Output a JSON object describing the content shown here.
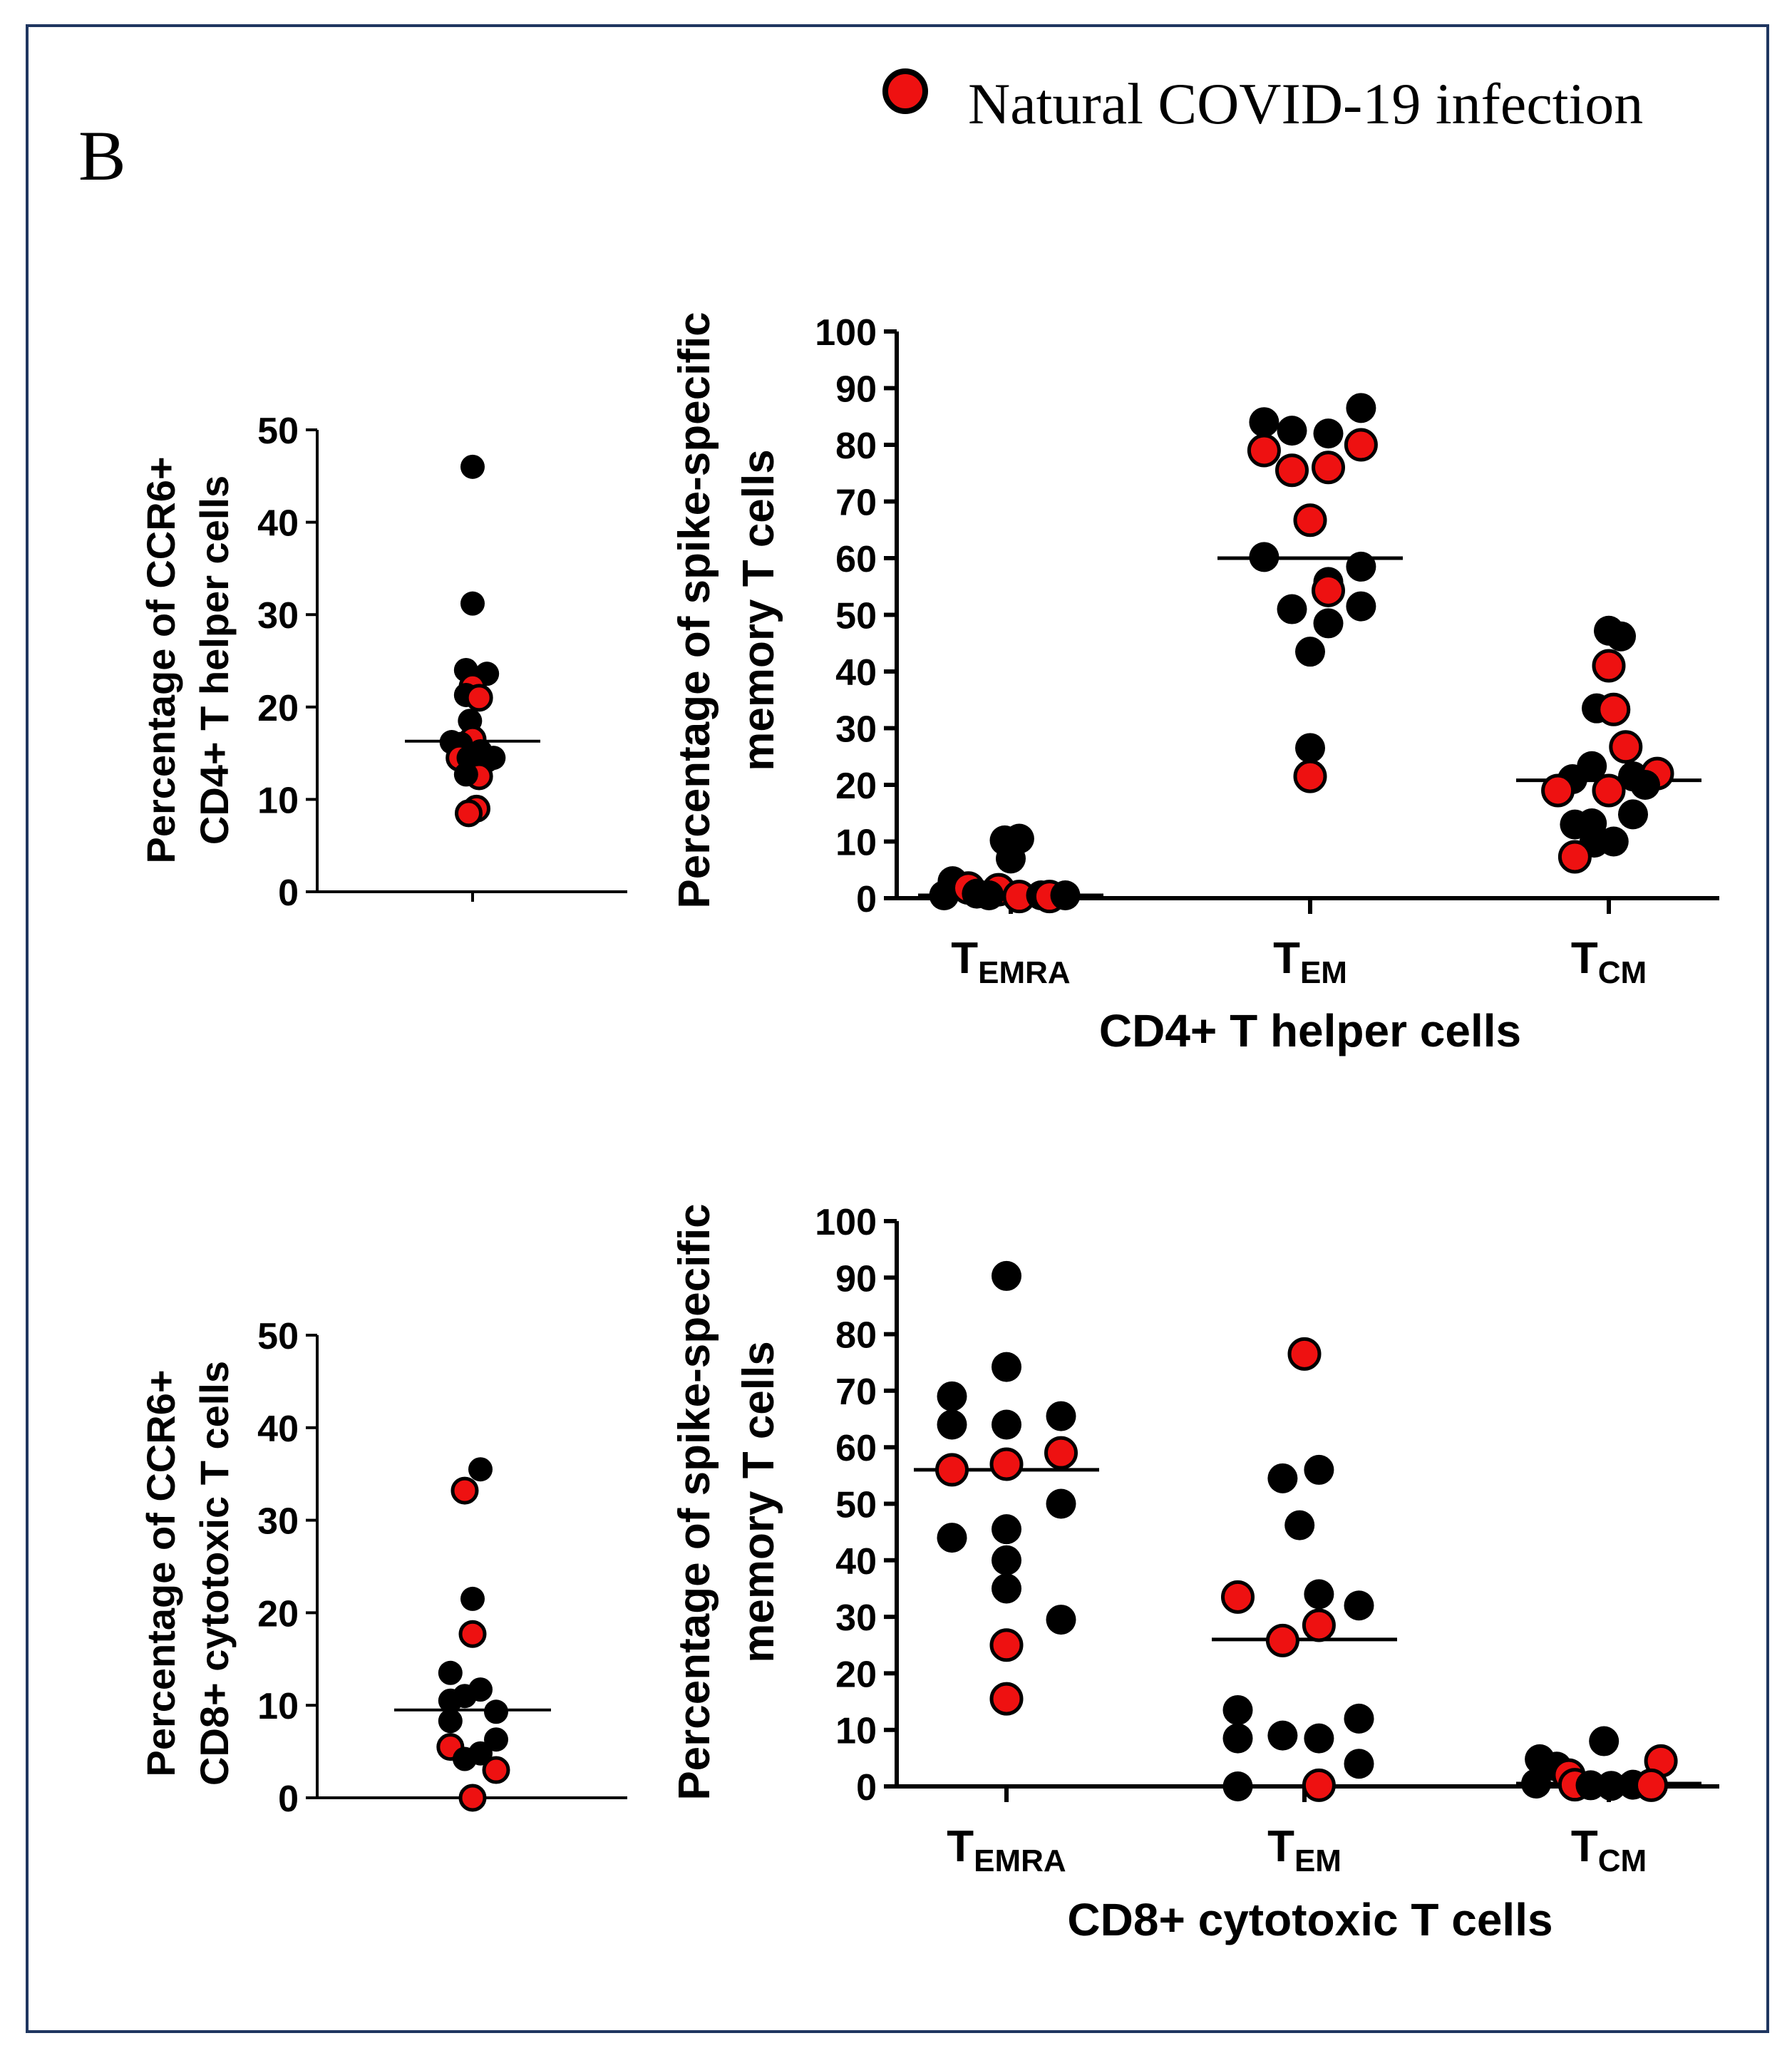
{
  "figure": {
    "panel_label": "B",
    "legend_label": "Natural COVID-19 infection",
    "colors": {
      "natural": "#ee1111",
      "other": "#000000",
      "frame": "#1f3660",
      "axis": "#000000"
    }
  },
  "chart_data": [
    {
      "id": "cd4-ccr6",
      "type": "scatter",
      "ylabel_lines": [
        "Percentage of CCR6+",
        "CD4+ T helper cells"
      ],
      "ylim": [
        0,
        50
      ],
      "yticks": [
        0,
        10,
        20,
        30,
        40,
        50
      ],
      "median": 16.3,
      "points": [
        {
          "y": 46.0,
          "dx": 0,
          "natural": false
        },
        {
          "y": 31.2,
          "dx": 0,
          "natural": false
        },
        {
          "y": 24.0,
          "dx": -0.5,
          "natural": false
        },
        {
          "y": 23.6,
          "dx": 1.1,
          "natural": false
        },
        {
          "y": 22.2,
          "dx": 0,
          "natural": true
        },
        {
          "y": 21.3,
          "dx": -0.5,
          "natural": false
        },
        {
          "y": 21.0,
          "dx": 0.5,
          "natural": true
        },
        {
          "y": 18.5,
          "dx": -0.2,
          "natural": false
        },
        {
          "y": 16.5,
          "dx": 0,
          "natural": true
        },
        {
          "y": 16.2,
          "dx": -1.6,
          "natural": false
        },
        {
          "y": 16.0,
          "dx": -0.9,
          "natural": false
        },
        {
          "y": 15.2,
          "dx": 0.6,
          "natural": false
        },
        {
          "y": 14.5,
          "dx": -1.0,
          "natural": true
        },
        {
          "y": 14.5,
          "dx": -0.3,
          "natural": false
        },
        {
          "y": 14.6,
          "dx": 0.3,
          "natural": false
        },
        {
          "y": 14.5,
          "dx": 1.6,
          "natural": false
        },
        {
          "y": 14.2,
          "dx": 1.1,
          "natural": false
        },
        {
          "y": 12.5,
          "dx": 0.5,
          "natural": true
        },
        {
          "y": 12.7,
          "dx": -0.5,
          "natural": false
        },
        {
          "y": 9.0,
          "dx": 0.3,
          "natural": true
        },
        {
          "y": 8.5,
          "dx": -0.3,
          "natural": true
        }
      ]
    },
    {
      "id": "cd4-memory",
      "type": "scatter",
      "ylabel_lines": [
        "Percentage of spike-specific",
        "memory T cells"
      ],
      "xlabel": "CD4+ T helper cells",
      "categories": [
        {
          "main": "T",
          "sub": "EMRA"
        },
        {
          "main": "T",
          "sub": "EM"
        },
        {
          "main": "T",
          "sub": "CM"
        }
      ],
      "ylim": [
        0,
        100
      ],
      "yticks": [
        0,
        10,
        20,
        30,
        40,
        50,
        60,
        70,
        80,
        90,
        100
      ],
      "medians": [
        0.5,
        60,
        20.8
      ],
      "groups": [
        [
          {
            "y": 3.0,
            "dx": -0.48,
            "natural": false
          },
          {
            "y": 0.5,
            "dx": -0.55,
            "natural": false
          },
          {
            "y": 1.8,
            "dx": -0.35,
            "natural": true
          },
          {
            "y": 0.8,
            "dx": -0.28,
            "natural": false
          },
          {
            "y": 10.2,
            "dx": -0.05,
            "natural": false
          },
          {
            "y": 10.5,
            "dx": 0.07,
            "natural": false
          },
          {
            "y": 7.0,
            "dx": 0.0,
            "natural": false
          },
          {
            "y": 1.5,
            "dx": -0.1,
            "natural": true
          },
          {
            "y": 0.5,
            "dx": -0.18,
            "natural": false
          },
          {
            "y": 0.3,
            "dx": 0.07,
            "natural": true
          },
          {
            "y": 0.5,
            "dx": 0.25,
            "natural": false
          },
          {
            "y": 0.3,
            "dx": 0.32,
            "natural": true
          },
          {
            "y": 0.5,
            "dx": 0.45,
            "natural": false
          }
        ],
        [
          {
            "y": 84.0,
            "dx": -0.38,
            "natural": false
          },
          {
            "y": 82.5,
            "dx": -0.15,
            "natural": false
          },
          {
            "y": 82.0,
            "dx": 0.15,
            "natural": false
          },
          {
            "y": 86.5,
            "dx": 0.42,
            "natural": false
          },
          {
            "y": 79.0,
            "dx": -0.38,
            "natural": true
          },
          {
            "y": 75.5,
            "dx": -0.15,
            "natural": true
          },
          {
            "y": 76.0,
            "dx": 0.15,
            "natural": true
          },
          {
            "y": 80.0,
            "dx": 0.42,
            "natural": true
          },
          {
            "y": 66.7,
            "dx": 0.0,
            "natural": true
          },
          {
            "y": 60.2,
            "dx": -0.38,
            "natural": false
          },
          {
            "y": 58.5,
            "dx": 0.42,
            "natural": false
          },
          {
            "y": 55.8,
            "dx": 0.15,
            "natural": false
          },
          {
            "y": 54.3,
            "dx": 0.15,
            "natural": true
          },
          {
            "y": 51.0,
            "dx": -0.15,
            "natural": false
          },
          {
            "y": 51.5,
            "dx": 0.42,
            "natural": false
          },
          {
            "y": 48.5,
            "dx": 0.15,
            "natural": false
          },
          {
            "y": 43.5,
            "dx": 0.0,
            "natural": false
          },
          {
            "y": 26.5,
            "dx": 0.0,
            "natural": false
          },
          {
            "y": 21.5,
            "dx": 0.0,
            "natural": true
          }
        ],
        [
          {
            "y": 47.2,
            "dx": 0.0,
            "natural": false
          },
          {
            "y": 46.2,
            "dx": 0.1,
            "natural": false
          },
          {
            "y": 41.0,
            "dx": 0.0,
            "natural": true
          },
          {
            "y": 33.5,
            "dx": -0.1,
            "natural": false
          },
          {
            "y": 33.3,
            "dx": 0.04,
            "natural": true
          },
          {
            "y": 26.7,
            "dx": 0.14,
            "natural": true
          },
          {
            "y": 23.3,
            "dx": -0.14,
            "natural": false
          },
          {
            "y": 21.0,
            "dx": -0.3,
            "natural": false
          },
          {
            "y": 21.5,
            "dx": 0.2,
            "natural": false
          },
          {
            "y": 22.0,
            "dx": 0.4,
            "natural": true
          },
          {
            "y": 19.0,
            "dx": -0.42,
            "natural": true
          },
          {
            "y": 19.0,
            "dx": 0.0,
            "natural": true
          },
          {
            "y": 20.0,
            "dx": 0.3,
            "natural": false
          },
          {
            "y": 14.8,
            "dx": 0.2,
            "natural": false
          },
          {
            "y": 13.0,
            "dx": -0.28,
            "natural": false
          },
          {
            "y": 13.2,
            "dx": -0.14,
            "natural": false
          },
          {
            "y": 9.8,
            "dx": -0.12,
            "natural": false
          },
          {
            "y": 10.0,
            "dx": 0.04,
            "natural": false
          },
          {
            "y": 7.3,
            "dx": -0.28,
            "natural": true
          }
        ]
      ]
    },
    {
      "id": "cd8-ccr6",
      "type": "scatter",
      "ylabel_lines": [
        "Percentage of CCR6+",
        "CD8+ cytotoxic T cells"
      ],
      "ylim": [
        0,
        50
      ],
      "yticks": [
        0,
        10,
        20,
        30,
        40,
        50
      ],
      "median": 9.5,
      "points": [
        {
          "y": 35.5,
          "dx": 0.6,
          "natural": false
        },
        {
          "y": 33.2,
          "dx": -0.6,
          "natural": true
        },
        {
          "y": 21.5,
          "dx": 0,
          "natural": false
        },
        {
          "y": 17.7,
          "dx": 0,
          "natural": true
        },
        {
          "y": 13.5,
          "dx": -1.7,
          "natural": false
        },
        {
          "y": 11.7,
          "dx": 0.6,
          "natural": false
        },
        {
          "y": 11.0,
          "dx": -0.6,
          "natural": false
        },
        {
          "y": 10.5,
          "dx": -1.7,
          "natural": false
        },
        {
          "y": 9.3,
          "dx": 1.8,
          "natural": false
        },
        {
          "y": 8.3,
          "dx": -1.7,
          "natural": false
        },
        {
          "y": 6.3,
          "dx": 1.8,
          "natural": false
        },
        {
          "y": 5.5,
          "dx": -1.7,
          "natural": true
        },
        {
          "y": 4.8,
          "dx": 0.6,
          "natural": false
        },
        {
          "y": 4.2,
          "dx": -0.6,
          "natural": false
        },
        {
          "y": 3.0,
          "dx": 1.8,
          "natural": true
        },
        {
          "y": 0.0,
          "dx": 0,
          "natural": true
        }
      ]
    },
    {
      "id": "cd8-memory",
      "type": "scatter",
      "ylabel_lines": [
        "Percentage of spike-specific",
        "memory T cells"
      ],
      "xlabel": "CD8+ cytotoxic T cells",
      "categories": [
        {
          "main": "T",
          "sub": "EMRA"
        },
        {
          "main": "T",
          "sub": "EM"
        },
        {
          "main": "T",
          "sub": "CM"
        }
      ],
      "ylim": [
        0,
        100
      ],
      "yticks": [
        0,
        10,
        20,
        30,
        40,
        50,
        60,
        70,
        80,
        90,
        100
      ],
      "medians": [
        56,
        26,
        0.5
      ],
      "groups": [
        [
          {
            "y": 90.3,
            "dx": 0.0,
            "natural": false
          },
          {
            "y": 74.2,
            "dx": 0.0,
            "natural": false
          },
          {
            "y": 69.0,
            "dx": -0.45,
            "natural": false
          },
          {
            "y": 65.5,
            "dx": 0.45,
            "natural": false
          },
          {
            "y": 64.0,
            "dx": -0.45,
            "natural": false
          },
          {
            "y": 64.0,
            "dx": 0.0,
            "natural": false
          },
          {
            "y": 59.0,
            "dx": 0.45,
            "natural": true
          },
          {
            "y": 57.0,
            "dx": 0.0,
            "natural": true
          },
          {
            "y": 56.0,
            "dx": -0.45,
            "natural": true
          },
          {
            "y": 50.0,
            "dx": 0.45,
            "natural": false
          },
          {
            "y": 45.5,
            "dx": 0.0,
            "natural": false
          },
          {
            "y": 44.0,
            "dx": -0.45,
            "natural": false
          },
          {
            "y": 40.0,
            "dx": 0.0,
            "natural": false
          },
          {
            "y": 35.0,
            "dx": 0.0,
            "natural": false
          },
          {
            "y": 29.5,
            "dx": 0.45,
            "natural": false
          },
          {
            "y": 25.0,
            "dx": 0.0,
            "natural": true
          },
          {
            "y": 15.5,
            "dx": 0.0,
            "natural": true
          }
        ],
        [
          {
            "y": 76.5,
            "dx": 0.0,
            "natural": true
          },
          {
            "y": 56.0,
            "dx": 0.12,
            "natural": false
          },
          {
            "y": 54.5,
            "dx": -0.18,
            "natural": false
          },
          {
            "y": 46.2,
            "dx": -0.04,
            "natural": false
          },
          {
            "y": 33.5,
            "dx": -0.55,
            "natural": true
          },
          {
            "y": 34.0,
            "dx": 0.12,
            "natural": false
          },
          {
            "y": 32.0,
            "dx": 0.45,
            "natural": false
          },
          {
            "y": 28.5,
            "dx": 0.12,
            "natural": true
          },
          {
            "y": 25.8,
            "dx": -0.18,
            "natural": true
          },
          {
            "y": 13.5,
            "dx": -0.55,
            "natural": false
          },
          {
            "y": 12.0,
            "dx": 0.45,
            "natural": false
          },
          {
            "y": 9.0,
            "dx": -0.18,
            "natural": false
          },
          {
            "y": 8.5,
            "dx": 0.12,
            "natural": false
          },
          {
            "y": 8.5,
            "dx": -0.55,
            "natural": false
          },
          {
            "y": 4.0,
            "dx": 0.45,
            "natural": false
          },
          {
            "y": 0.0,
            "dx": -0.55,
            "natural": false
          },
          {
            "y": 0.2,
            "dx": 0.12,
            "natural": true
          }
        ],
        [
          {
            "y": 8.0,
            "dx": -0.04,
            "natural": false
          },
          {
            "y": 4.8,
            "dx": -0.57,
            "natural": false
          },
          {
            "y": 4.5,
            "dx": 0.43,
            "natural": true
          },
          {
            "y": 3.5,
            "dx": -0.43,
            "natural": false
          },
          {
            "y": 2.0,
            "dx": -0.33,
            "natural": true
          },
          {
            "y": 0.5,
            "dx": -0.6,
            "natural": false
          },
          {
            "y": 0.3,
            "dx": -0.28,
            "natural": true
          },
          {
            "y": 0.2,
            "dx": -0.15,
            "natural": false
          },
          {
            "y": 0.1,
            "dx": 0.02,
            "natural": false
          },
          {
            "y": 0.3,
            "dx": 0.2,
            "natural": false
          },
          {
            "y": 0.2,
            "dx": 0.35,
            "natural": true
          }
        ]
      ]
    }
  ]
}
